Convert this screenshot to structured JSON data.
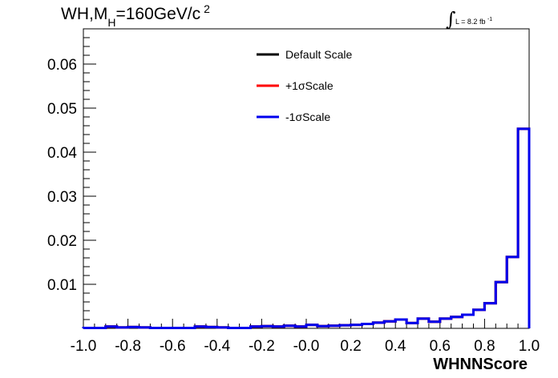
{
  "title": {
    "main": "WH,M",
    "sub": "H",
    "rest": "=160GeV/c",
    "sup": "2"
  },
  "lumi": {
    "integral": "∫",
    "text": "L = 8.2 fb",
    "sup": "-1"
  },
  "chart_data": {
    "type": "line",
    "xlabel": "WHNNScore",
    "ylabel": "",
    "xlim": [
      -1.0,
      1.0
    ],
    "ylim": [
      0,
      0.068
    ],
    "xticks": [
      "-1.0",
      "-0.8",
      "-0.6",
      "-0.4",
      "-0.2",
      "-0.0",
      "0.2",
      "0.4",
      "0.6",
      "0.8",
      "1.0"
    ],
    "yticks": [
      "0.01",
      "0.02",
      "0.03",
      "0.04",
      "0.05",
      "0.06"
    ],
    "bin_edges": [
      -1.0,
      -0.95,
      -0.9,
      -0.85,
      -0.8,
      -0.75,
      -0.7,
      -0.65,
      -0.6,
      -0.55,
      -0.5,
      -0.45,
      -0.4,
      -0.35,
      -0.3,
      -0.25,
      -0.2,
      -0.15,
      -0.1,
      -0.05,
      0.0,
      0.05,
      0.1,
      0.15,
      0.2,
      0.25,
      0.3,
      0.35,
      0.4,
      0.45,
      0.5,
      0.55,
      0.6,
      0.65,
      0.7,
      0.75,
      0.8,
      0.85,
      0.9,
      0.95,
      1.0
    ],
    "series": [
      {
        "name": "Default Scale",
        "color": "#000000",
        "values": [
          0.0001,
          0.0001,
          0.0004,
          0.0002,
          0.0003,
          0.0002,
          0.0001,
          0.0001,
          0.0001,
          0.0001,
          0.0004,
          0.0003,
          0.0002,
          0.0001,
          0.0001,
          0.0004,
          0.0005,
          0.0004,
          0.0006,
          0.0004,
          0.0008,
          0.0005,
          0.0006,
          0.0007,
          0.0008,
          0.001,
          0.0013,
          0.0016,
          0.002,
          0.0012,
          0.0022,
          0.0015,
          0.0022,
          0.0026,
          0.0031,
          0.0042,
          0.0057,
          0.0105,
          0.0162,
          0.0453
        ]
      },
      {
        "name": "+1σScale",
        "color": "#ff0000",
        "values": [
          0.0001,
          0.0001,
          0.0004,
          0.0002,
          0.0003,
          0.0002,
          0.0001,
          0.0001,
          0.0001,
          0.0001,
          0.0004,
          0.0003,
          0.0002,
          0.0001,
          0.0001,
          0.0004,
          0.0005,
          0.0004,
          0.0006,
          0.0004,
          0.0008,
          0.0005,
          0.0006,
          0.0007,
          0.0008,
          0.001,
          0.0013,
          0.0016,
          0.002,
          0.0012,
          0.0022,
          0.0015,
          0.0022,
          0.0026,
          0.0031,
          0.0042,
          0.0057,
          0.0105,
          0.0162,
          0.0453
        ]
      },
      {
        "name": "-1σScale",
        "color": "#0000ee",
        "values": [
          0.0001,
          0.0001,
          0.0004,
          0.0002,
          0.0003,
          0.0002,
          0.0001,
          0.0001,
          0.0001,
          0.0001,
          0.0004,
          0.0003,
          0.0002,
          0.0001,
          0.0001,
          0.0004,
          0.0005,
          0.0004,
          0.0006,
          0.0004,
          0.0008,
          0.0005,
          0.0006,
          0.0007,
          0.0008,
          0.001,
          0.0013,
          0.0016,
          0.002,
          0.0012,
          0.0022,
          0.0015,
          0.0022,
          0.0026,
          0.0031,
          0.0042,
          0.0057,
          0.0105,
          0.0162,
          0.0453
        ]
      }
    ],
    "legend_position": "top-center",
    "grid": false
  }
}
